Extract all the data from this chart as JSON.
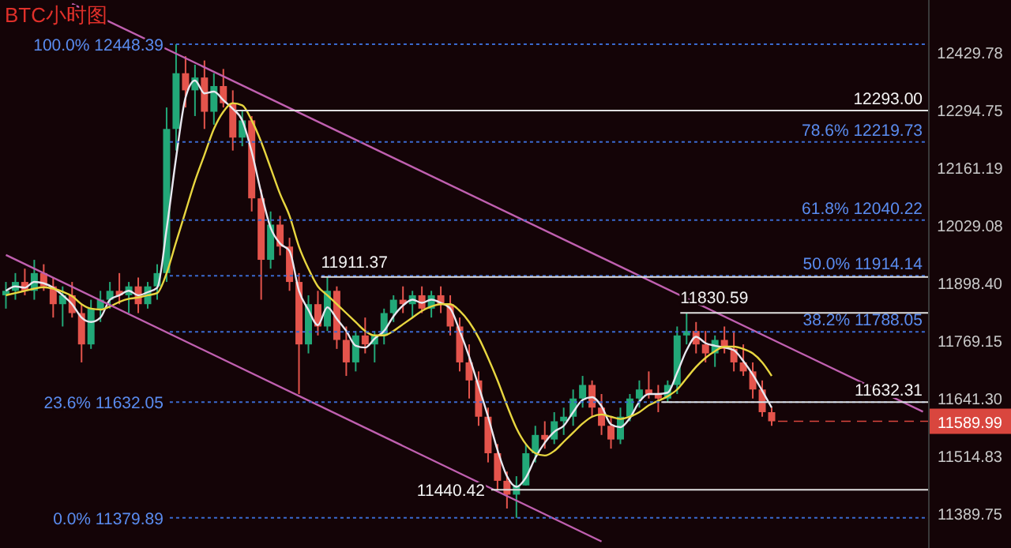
{
  "chart_data": {
    "type": "candlestick",
    "title": "BTC小时图",
    "log": "y",
    "tick_labels": "y",
    "categories": [
      null,
      null,
      null,
      null,
      null,
      null,
      null,
      null,
      null,
      null,
      null,
      null,
      null,
      null,
      null,
      null,
      null,
      null,
      null,
      null,
      null,
      null,
      null,
      null,
      null,
      null,
      null,
      null,
      null,
      null,
      null,
      null,
      null,
      null,
      null,
      null,
      null,
      null,
      null,
      null,
      null,
      null,
      null,
      null,
      null,
      null,
      null,
      null,
      null,
      null,
      null,
      null,
      null,
      null,
      null,
      null,
      null,
      null,
      null,
      null,
      null,
      null,
      null,
      null,
      null,
      null,
      null,
      null,
      null,
      null,
      null,
      null,
      null,
      null,
      null,
      null,
      null,
      null,
      null,
      null,
      null,
      null,
      null,
      null,
      null,
      null,
      null,
      null,
      null,
      null,
      null,
      null,
      null,
      null,
      null,
      null,
      null,
      null
    ],
    "ohlc": [
      [
        11870,
        11900,
        11840,
        11880
      ],
      [
        11880,
        11920,
        11860,
        11900
      ],
      [
        11900,
        11930,
        11870,
        11880
      ],
      [
        11880,
        11950,
        11860,
        11920
      ],
      [
        11920,
        11940,
        11880,
        11890
      ],
      [
        11890,
        11910,
        11820,
        11850
      ],
      [
        11850,
        11890,
        11800,
        11870
      ],
      [
        11870,
        11900,
        11820,
        11830
      ],
      [
        11830,
        11850,
        11720,
        11760
      ],
      [
        11760,
        11860,
        11750,
        11840
      ],
      [
        11840,
        11880,
        11810,
        11860
      ],
      [
        11860,
        11900,
        11840,
        11880
      ],
      [
        11880,
        11920,
        11850,
        11870
      ],
      [
        11870,
        11900,
        11830,
        11890
      ],
      [
        11890,
        11910,
        11830,
        11850
      ],
      [
        11850,
        11900,
        11840,
        11890
      ],
      [
        11890,
        11940,
        11860,
        11920
      ],
      [
        11920,
        12300,
        11900,
        12250
      ],
      [
        12250,
        12448.39,
        12200,
        12380
      ],
      [
        12380,
        12420,
        12300,
        12340
      ],
      [
        12340,
        12400,
        12280,
        12370
      ],
      [
        12370,
        12410,
        12250,
        12290
      ],
      [
        12290,
        12380,
        12260,
        12350
      ],
      [
        12350,
        12390,
        12300,
        12310
      ],
      [
        12310,
        12340,
        12200,
        12230
      ],
      [
        12230,
        12293.0,
        12210,
        12270
      ],
      [
        12270,
        12280,
        12060,
        12090
      ],
      [
        12090,
        12110,
        11860,
        11950
      ],
      [
        11950,
        12060,
        11930,
        12030
      ],
      [
        12030,
        12050,
        11960,
        11980
      ],
      [
        11980,
        12000,
        11880,
        11900
      ],
      [
        11900,
        11920,
        11650,
        11760
      ],
      [
        11760,
        11870,
        11740,
        11850
      ],
      [
        11850,
        11880,
        11780,
        11800
      ],
      [
        11800,
        11911.37,
        11790,
        11880
      ],
      [
        11880,
        11890,
        11750,
        11770
      ],
      [
        11770,
        11800,
        11690,
        11720
      ],
      [
        11720,
        11790,
        11700,
        11780
      ],
      [
        11780,
        11820,
        11740,
        11760
      ],
      [
        11760,
        11790,
        11720,
        11780
      ],
      [
        11780,
        11840,
        11760,
        11830
      ],
      [
        11830,
        11870,
        11810,
        11860
      ],
      [
        11860,
        11890,
        11830,
        11850
      ],
      [
        11850,
        11880,
        11820,
        11870
      ],
      [
        11870,
        11890,
        11830,
        11840
      ],
      [
        11840,
        11880,
        11820,
        11870
      ],
      [
        11870,
        11890,
        11830,
        11850
      ],
      [
        11850,
        11870,
        11780,
        11800
      ],
      [
        11800,
        11820,
        11700,
        11720
      ],
      [
        11720,
        11760,
        11640,
        11680
      ],
      [
        11680,
        11700,
        11580,
        11600
      ],
      [
        11600,
        11620,
        11500,
        11520
      ],
      [
        11520,
        11540,
        11440.42,
        11460
      ],
      [
        11460,
        11480,
        11400,
        11430
      ],
      [
        11430,
        11470,
        11379.89,
        11450
      ],
      [
        11450,
        11540,
        11450,
        11520
      ],
      [
        11520,
        11580,
        11500,
        11560
      ],
      [
        11560,
        11590,
        11530,
        11550
      ],
      [
        11550,
        11610,
        11540,
        11590
      ],
      [
        11590,
        11620,
        11560,
        11600
      ],
      [
        11600,
        11660,
        11580,
        11640
      ],
      [
        11640,
        11690,
        11620,
        11670
      ],
      [
        11670,
        11680,
        11600,
        11620
      ],
      [
        11620,
        11650,
        11560,
        11580
      ],
      [
        11580,
        11600,
        11530,
        11550
      ],
      [
        11550,
        11620,
        11540,
        11600
      ],
      [
        11600,
        11650,
        11590,
        11640
      ],
      [
        11640,
        11680,
        11620,
        11660
      ],
      [
        11660,
        11700,
        11640,
        11650
      ],
      [
        11650,
        11670,
        11610,
        11640
      ],
      [
        11640,
        11680,
        11632.31,
        11670
      ],
      [
        11670,
        11800,
        11650,
        11780
      ],
      [
        11780,
        11830.59,
        11760,
        11790
      ],
      [
        11790,
        11810,
        11740,
        11760
      ],
      [
        11760,
        11790,
        11720,
        11740
      ],
      [
        11740,
        11780,
        11710,
        11770
      ],
      [
        11770,
        11800,
        11740,
        11750
      ],
      [
        11750,
        11790,
        11700,
        11720
      ],
      [
        11720,
        11760,
        11690,
        11700
      ],
      [
        11700,
        11720,
        11640,
        11660
      ],
      [
        11660,
        11680,
        11600,
        11610
      ],
      [
        11610,
        11620,
        11580,
        11589.99
      ],
      null,
      null,
      null,
      null,
      null,
      null,
      null,
      null,
      null,
      null,
      null,
      null,
      null,
      null,
      null,
      null
    ],
    "series": [
      {
        "type": "line",
        "color": "#e8e8f0",
        "values": [
          11880,
          11890,
          11887,
          11900,
          11897,
          11887,
          11870,
          11850,
          11820,
          11810,
          11820,
          11860,
          11870,
          11880,
          11870,
          11877,
          11887,
          12020,
          12183,
          12323,
          12363,
          12333,
          12337,
          12317,
          12297,
          12270,
          12197,
          12103,
          12023,
          11987,
          11970,
          11880,
          11837,
          11803,
          11843,
          11817,
          11790,
          11757,
          11753,
          11773,
          11790,
          11823,
          11847,
          11860,
          11853,
          11860,
          11853,
          11840,
          11790,
          11733,
          11667,
          11600,
          11527,
          11470,
          11447,
          11467,
          11510,
          11543,
          11567,
          11580,
          11610,
          11637,
          11643,
          11623,
          11583,
          11577,
          11597,
          11633,
          11650,
          11650,
          11653,
          11697,
          11747,
          11777,
          11763,
          11757,
          11753,
          11747,
          11723,
          11693,
          11657,
          11620,
          null,
          null,
          null,
          null,
          null,
          null,
          null,
          null,
          null,
          null,
          null,
          null,
          null,
          null,
          null,
          null
        ]
      },
      {
        "type": "line",
        "color": "#e8d640",
        "values": [
          11870,
          11875,
          11880,
          11885,
          11888,
          11885,
          11878,
          11868,
          11850,
          11840,
          11838,
          11845,
          11855,
          11862,
          11865,
          11870,
          11875,
          11920,
          11990,
          12060,
          12130,
          12190,
          12250,
          12290,
          12310,
          12305,
          12270,
          12220,
          12160,
          12100,
          12050,
          11980,
          11930,
          11890,
          11870,
          11850,
          11830,
          11810,
          11790,
          11780,
          11780,
          11790,
          11805,
          11820,
          11835,
          11845,
          11850,
          11850,
          11835,
          11810,
          11775,
          11730,
          11680,
          11625,
          11575,
          11540,
          11520,
          11515,
          11525,
          11545,
          11565,
          11585,
          11600,
          11605,
          11600,
          11595,
          11600,
          11610,
          11625,
          11635,
          11645,
          11660,
          11685,
          11710,
          11730,
          11745,
          11755,
          11755,
          11750,
          11740,
          11720,
          11690,
          null,
          null,
          null,
          null,
          null,
          null,
          null,
          null,
          null,
          null,
          null,
          null,
          null,
          null,
          null,
          null
        ]
      },
      {
        "type": "line",
        "color": "#c060b0",
        "values": [
          null,
          null,
          null,
          null,
          null,
          null,
          null,
          12544,
          null,
          null,
          null,
          null,
          null,
          null,
          null,
          null,
          null,
          null,
          null,
          null,
          null,
          null,
          null,
          null,
          null,
          null,
          null,
          null,
          null,
          null,
          null,
          null,
          null,
          null,
          null,
          null,
          null,
          null,
          null,
          null,
          null,
          null,
          null,
          null,
          null,
          null,
          null,
          null,
          null,
          null,
          null,
          null,
          null,
          null,
          null,
          null,
          null,
          null,
          null,
          null,
          null,
          null,
          null,
          null,
          null,
          null,
          null,
          null,
          null,
          null,
          null,
          null,
          null,
          null,
          null,
          null,
          null,
          null,
          null,
          null,
          null,
          null,
          null,
          null,
          null,
          null,
          null,
          null,
          null,
          null,
          null,
          null,
          null,
          null,
          null,
          null,
          null,
          11611
        ]
      },
      {
        "type": "line",
        "color": "#c060b0",
        "values": [
          11961,
          null,
          null,
          null,
          null,
          null,
          null,
          null,
          null,
          null,
          null,
          null,
          null,
          null,
          null,
          null,
          null,
          null,
          null,
          null,
          null,
          null,
          null,
          null,
          null,
          null,
          null,
          null,
          null,
          null,
          null,
          null,
          null,
          null,
          null,
          null,
          null,
          null,
          null,
          null,
          null,
          null,
          null,
          null,
          null,
          null,
          null,
          null,
          null,
          null,
          null,
          null,
          null,
          null,
          null,
          null,
          null,
          null,
          null,
          null,
          null,
          null,
          null,
          11329,
          null,
          null,
          null,
          null,
          null,
          null,
          null,
          null,
          null,
          null,
          null,
          null,
          null,
          null,
          null,
          null,
          null,
          null,
          null,
          null,
          null,
          null,
          null,
          null,
          null,
          null,
          null,
          null,
          null,
          null,
          null,
          null,
          null,
          null
        ]
      }
    ],
    "ylim": [
      11315,
      12553
    ],
    "yticks": [
      {
        "value": 12429.78,
        "label": "12429.78"
      },
      {
        "value": 12294.75,
        "label": "12294.75"
      },
      {
        "value": 12161.19,
        "label": "12161.19"
      },
      {
        "value": 12029.08,
        "label": "12029.08"
      },
      {
        "value": 11898.4,
        "label": "11898.40"
      },
      {
        "value": 11769.15,
        "label": "11769.15"
      },
      {
        "value": 11641.3,
        "label": "11641.30"
      },
      {
        "value": 11514.83,
        "label": "11514.83"
      },
      {
        "value": 11389.75,
        "label": "11389.75"
      }
    ],
    "ref_lines": [
      {
        "axis": "y",
        "value": 12448.39,
        "label": "100.0% 12448.39",
        "color": "#3a6ad0",
        "line_style": "dotted"
      },
      {
        "axis": "y",
        "value": 12219.73,
        "label": "78.6% 12219.73",
        "color": "#3a6ad0",
        "line_style": "dotted"
      },
      {
        "axis": "y",
        "value": 12040.22,
        "label": "61.8% 12040.22",
        "color": "#3a6ad0",
        "line_style": "dotted"
      },
      {
        "axis": "y",
        "value": 11914.14,
        "label": "50.0% 11914.14",
        "color": "#3a6ad0",
        "line_style": "dotted"
      },
      {
        "axis": "y",
        "value": 11788.05,
        "label": "38.2% 11788.05",
        "color": "#3a6ad0",
        "line_style": "dotted"
      },
      {
        "axis": "y",
        "value": 11632.05,
        "label": "23.6% 11632.05",
        "color": "#3a6ad0",
        "line_style": "dotted"
      },
      {
        "axis": "y",
        "value": 11379.89,
        "label": "0.0% 11379.89",
        "color": "#3a6ad0",
        "line_style": "dotted"
      },
      {
        "axis": "y",
        "value": 12293.0,
        "label": "12293.00",
        "color": "#e0e0e0",
        "line_style": "solid"
      },
      {
        "axis": "y",
        "value": 11911.37,
        "label": "11911.37",
        "color": "#e0e0e0",
        "line_style": "solid"
      },
      {
        "axis": "y",
        "value": 11830.59,
        "label": "11830.59",
        "color": "#e0e0e0",
        "line_style": "solid"
      },
      {
        "axis": "y",
        "value": 11632.31,
        "label": "11632.31",
        "color": "#e0e0e0",
        "line_style": "solid"
      },
      {
        "axis": "y",
        "value": 11440.42,
        "label": "11440.42",
        "color": "#e0e0e0",
        "line_style": "solid"
      },
      {
        "axis": "y",
        "value": 11589.99,
        "label": "11589.99",
        "color": "#d9463e",
        "line_style": "dashed"
      }
    ]
  }
}
